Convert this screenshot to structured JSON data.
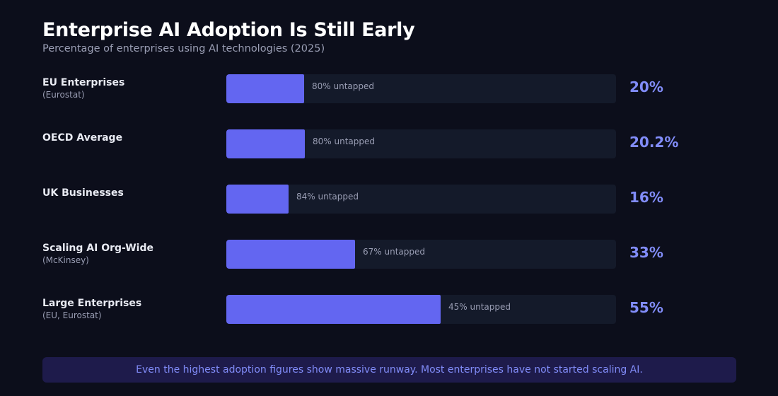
{
  "header": {
    "title": "Enterprise AI Adoption Is Still Early",
    "subtitle": "Percentage of enterprises using AI technologies (2025)"
  },
  "chart_data": {
    "type": "bar",
    "orientation": "horizontal",
    "title": "Enterprise AI Adoption Is Still Early",
    "subtitle": "Percentage of enterprises using AI technologies (2025)",
    "xlim": [
      0,
      100
    ],
    "unit": "%",
    "rows": [
      {
        "name": "EU Enterprises",
        "source": "(Eurostat)",
        "value": 20,
        "value_label": "20%",
        "untapped_label": "80% untapped"
      },
      {
        "name": "OECD Average",
        "source": "",
        "value": 20.2,
        "value_label": "20.2%",
        "untapped_label": "80% untapped"
      },
      {
        "name": "UK Businesses",
        "source": "",
        "value": 16,
        "value_label": "16%",
        "untapped_label": "84% untapped"
      },
      {
        "name": "Scaling AI Org-Wide",
        "source": "(McKinsey)",
        "value": 33,
        "value_label": "33%",
        "untapped_label": "67% untapped"
      },
      {
        "name": "Large Enterprises",
        "source": "(EU, Eurostat)",
        "value": 55,
        "value_label": "55%",
        "untapped_label": "45% untapped"
      }
    ],
    "colors": {
      "bar_fill": "#6366f1",
      "track": "#141a2a",
      "value_text": "#818cf8"
    }
  },
  "callout": {
    "text": "Even the highest adoption figures show massive runway. Most enterprises have not started scaling AI."
  },
  "colors": {
    "background": "#0c0e1b",
    "callout_background": "#1e1b4b",
    "callout_text": "#818cf8"
  }
}
